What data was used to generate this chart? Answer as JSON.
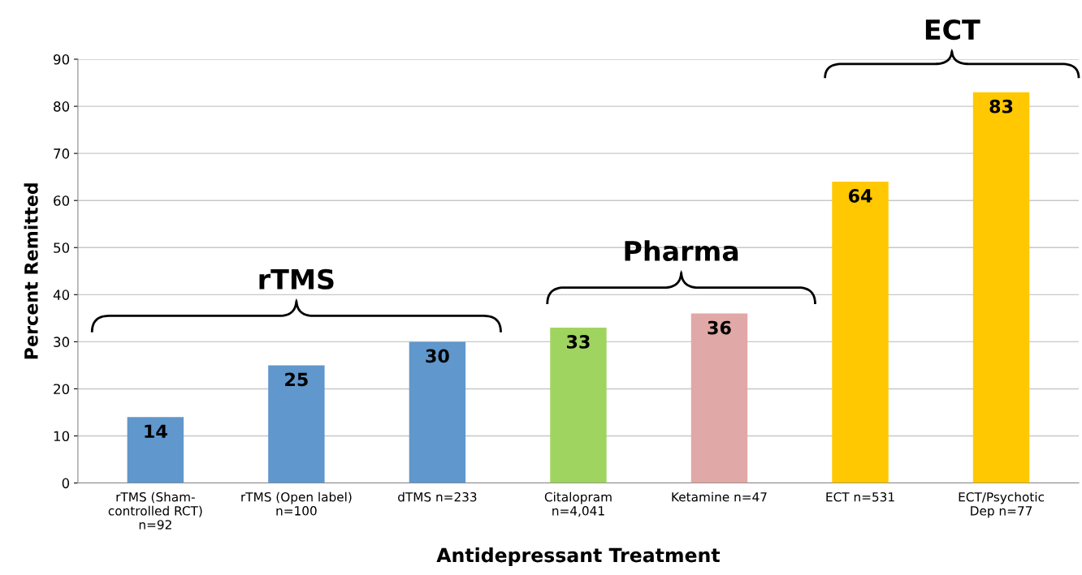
{
  "chart_data": {
    "type": "bar",
    "xlabel": "Antidepressant Treatment",
    "ylabel": "Percent Remitted",
    "categories": [
      "rTMS (Sham-\ncontrolled RCT)\nn=92",
      "rTMS (Open label)\nn=100",
      "dTMS n=233",
      "Citalopram\nn=4,041",
      "Ketamine n=47",
      "ECT n=531",
      "ECT/Psychotic\nDep n=77"
    ],
    "values": [
      14,
      25,
      30,
      33,
      36,
      64,
      83
    ],
    "colors": [
      "#6097cc",
      "#6097cc",
      "#6097cc",
      "#a0d460",
      "#e0a8a6",
      "#ffc800",
      "#ffc800"
    ],
    "ylim": [
      0,
      90
    ],
    "yticks": [
      0,
      10,
      20,
      30,
      40,
      50,
      60,
      70,
      80,
      90
    ],
    "grid": "y",
    "data_labels": true,
    "annotations": [
      "rTMS",
      "Pharma",
      "ECT"
    ]
  }
}
